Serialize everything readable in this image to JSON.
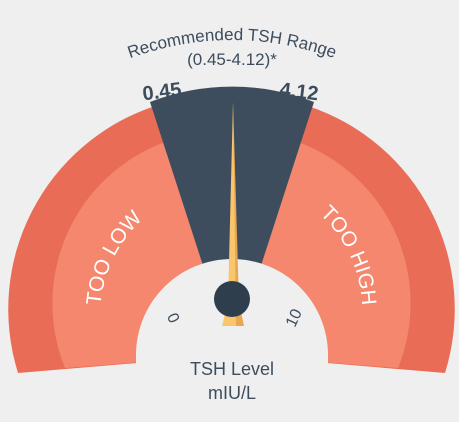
{
  "gauge": {
    "recommended_title": "Recommended TSH Range",
    "recommended_range": "(0.45-4.12)*",
    "range_low_label": "0.45",
    "range_high_label": "4.12",
    "zone_low_label": "TOO LOW",
    "zone_high_label": "TOO HIGH",
    "scale_min_label": "0",
    "scale_max_label": "10",
    "unit_title": "TSH Level",
    "unit": "mIU/L",
    "needle_value": 4.12,
    "colors": {
      "background": "#efefef",
      "outer_band": "#e96d56",
      "inner_band": "#f4876d",
      "normal_zone": "#3d4d5d",
      "hub_area": "#efefef",
      "needle": "#f9c56d",
      "needle_shadow": "#e9a84f",
      "pivot": "#2f3e4c",
      "text_dark": "#3d4d5d",
      "text_light": "#ffffff"
    }
  }
}
